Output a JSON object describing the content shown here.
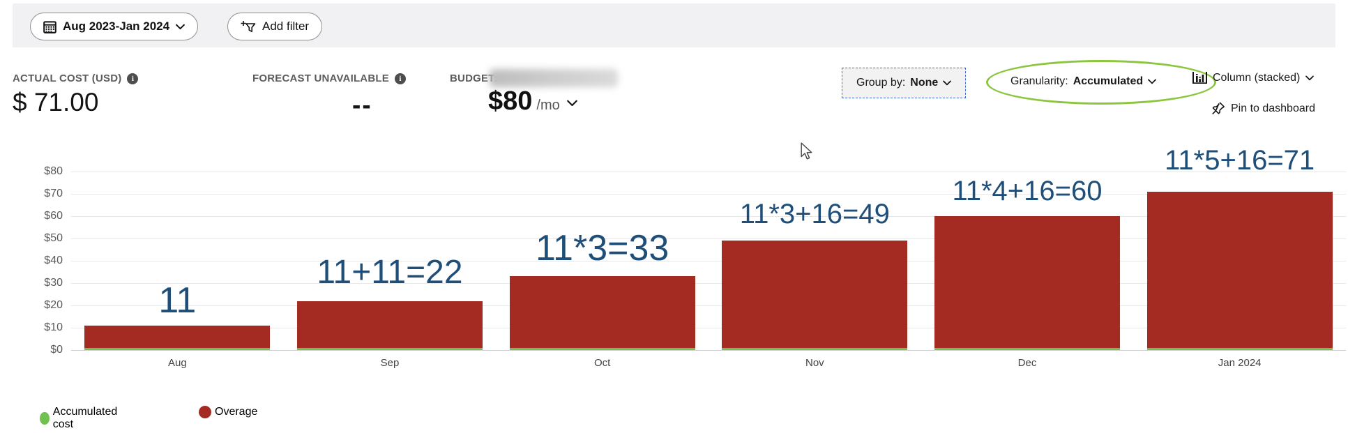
{
  "toolbar": {
    "date_range": "Aug 2023-Jan 2024",
    "add_filter_label": "Add filter"
  },
  "stats": {
    "actual_cost": {
      "label": "ACTUAL COST (USD)",
      "value": "$ 71.00"
    },
    "forecast": {
      "label": "FORECAST UNAVAILABLE",
      "value": "--"
    },
    "budget": {
      "label": "BUDGET:",
      "amount": "$80",
      "per": "/mo",
      "name_redacted": true
    }
  },
  "controls": {
    "group_by_prefix": "Group by:",
    "group_by_value": "None",
    "granularity_prefix": "Granularity:",
    "granularity_value": "Accumulated",
    "chart_type_label": "Column (stacked)",
    "pin_label": "Pin to dashboard"
  },
  "icons": {
    "calendar-icon": "calendar grid",
    "add-filter-icon": "funnel with plus",
    "info-icon": "i in filled circle",
    "chevron-down-icon": "v chevron",
    "column-chart-icon": "mini column bars",
    "pin-icon": "diagonal pushpin",
    "cursor-icon": "mouse arrow"
  },
  "colors": {
    "overage_red": "#a42b21",
    "accumulated_green": "#71c151",
    "annotation_blue": "#1f4e79",
    "highlight_ellipse_green": "#8cc63f",
    "groupby_dashed_border_blue": "#3a6bd2",
    "topbar_gray": "#f1f1f3"
  },
  "chart_data": {
    "type": "bar",
    "stacked": true,
    "title": "",
    "xlabel": "",
    "ylabel": "",
    "categories": [
      "Aug",
      "Sep",
      "Oct",
      "Nov",
      "Dec",
      "Jan 2024"
    ],
    "series": [
      {
        "name": "Accumulated cost",
        "color": "#71c151",
        "values": [
          0.5,
          0.5,
          0.5,
          0.5,
          0.5,
          0.5
        ]
      },
      {
        "name": "Overage",
        "color": "#a42b21",
        "values": [
          10.5,
          21.5,
          32.5,
          48.5,
          59.5,
          70.5
        ]
      }
    ],
    "totals": [
      11,
      22,
      33,
      49,
      60,
      71
    ],
    "annotations": [
      "11",
      "11+11=22",
      "11*3=33",
      "11*3+16=49",
      "11*4+16=60",
      "11*5+16=71"
    ],
    "y_ticks": [
      "$0",
      "$10",
      "$20",
      "$30",
      "$40",
      "$50",
      "$60",
      "$70",
      "$80"
    ],
    "ylim": [
      0,
      80
    ],
    "grid": true,
    "legend_position": "bottom"
  },
  "legend": [
    {
      "label": "Accumulated cost",
      "color": "#71c151"
    },
    {
      "label": "Overage",
      "color": "#a52a21"
    }
  ]
}
